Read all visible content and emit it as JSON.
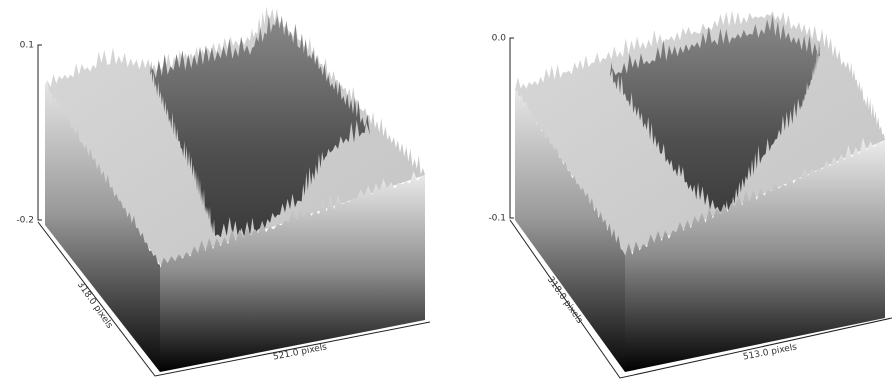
{
  "panels": [
    {
      "z_top": "0.1",
      "z_bottom": "-0.2",
      "y_axis_label": "318.0 pixels",
      "x_axis_label": "521.0 pixels"
    },
    {
      "z_top": "0.0",
      "z_bottom": "-0.1",
      "y_axis_label": "318.0 pixels",
      "x_axis_label": "513.0 pixels"
    }
  ]
}
